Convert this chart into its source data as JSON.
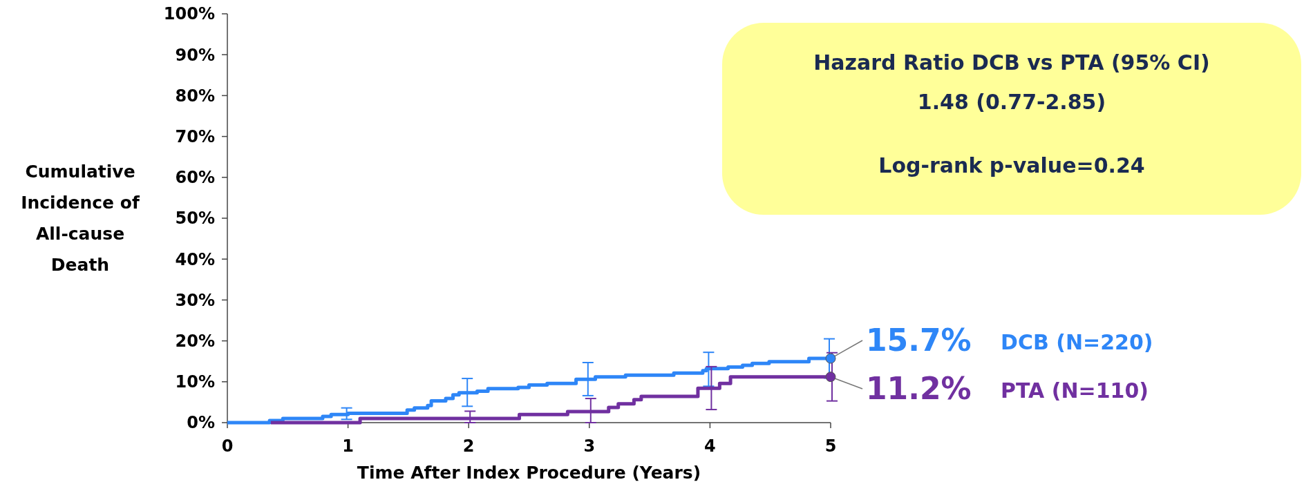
{
  "chart_data": {
    "type": "step",
    "xlabel": "Time After Index Procedure (Years)",
    "ylabel": "Cumulative Incidence of All-cause Death",
    "xlim": [
      0,
      5
    ],
    "ylim": [
      0,
      100
    ],
    "xticks": [
      0,
      1,
      2,
      3,
      4,
      5
    ],
    "yticks": [
      {
        "value": 0,
        "label": "0%"
      },
      {
        "value": 10,
        "label": "10%"
      },
      {
        "value": 20,
        "label": "20%"
      },
      {
        "value": 30,
        "label": "30%"
      },
      {
        "value": 40,
        "label": "40%"
      },
      {
        "value": 50,
        "label": "50%"
      },
      {
        "value": 60,
        "label": "60%"
      },
      {
        "value": 70,
        "label": "70%"
      },
      {
        "value": 80,
        "label": "80%"
      },
      {
        "value": 90,
        "label": "90%"
      },
      {
        "value": 100,
        "label": "100%"
      }
    ],
    "series": [
      {
        "name": "DCB (N=220)",
        "color": "#2e86f7",
        "x": [
          0,
          0.35,
          0.46,
          0.79,
          0.86,
          1,
          1.49,
          1.55,
          1.66,
          1.69,
          1.81,
          1.87,
          1.92,
          2,
          2.07,
          2.16,
          2.41,
          2.5,
          2.65,
          2.89,
          3,
          3.05,
          3.3,
          3.7,
          3.94,
          3.97,
          4,
          4.15,
          4.27,
          4.35,
          4.49,
          4.82,
          5
        ],
        "values": [
          0,
          0.5,
          1.0,
          1.5,
          2.0,
          2.3,
          3.1,
          3.6,
          4.2,
          5.3,
          5.9,
          6.8,
          7.3,
          7.3,
          7.7,
          8.3,
          8.6,
          9.2,
          9.6,
          10.6,
          10.6,
          11.2,
          11.6,
          12.1,
          12.7,
          13.2,
          13.2,
          13.6,
          14.0,
          14.5,
          14.9,
          15.7,
          15.7
        ],
        "errors": [
          null,
          null,
          null,
          null,
          null,
          [
            0.8,
            3.6
          ],
          null,
          null,
          null,
          null,
          null,
          null,
          null,
          [
            4.0,
            10.8
          ],
          null,
          null,
          null,
          null,
          null,
          null,
          [
            6.6,
            14.7
          ],
          null,
          null,
          null,
          null,
          null,
          [
            8.9,
            17.2
          ],
          null,
          null,
          null,
          null,
          null,
          [
            10.9,
            20.5
          ]
        ]
      },
      {
        "name": "PTA (N=110)",
        "color": "#7030a0",
        "x": [
          0.36,
          1.1,
          2,
          2.42,
          2.82,
          3,
          3.16,
          3.24,
          3.37,
          3.43,
          3.9,
          4,
          4.08,
          4.17,
          5
        ],
        "values": [
          0,
          1.0,
          1.0,
          2.0,
          2.7,
          2.7,
          3.7,
          4.6,
          5.6,
          6.4,
          8.4,
          8.4,
          9.6,
          11.2,
          11.2
        ],
        "errors": [
          null,
          null,
          [
            0,
            2.8
          ],
          null,
          null,
          [
            0,
            5.9
          ],
          null,
          null,
          null,
          null,
          null,
          [
            3.2,
            13.7
          ],
          null,
          null,
          [
            5.3,
            17.1
          ]
        ]
      }
    ],
    "annotations": [
      "Hazard Ratio DCB vs PTA (95% CI)",
      "1.48 (0.77-2.85)",
      "Log-rank p-value=0.24",
      {
        "text": "15.7%",
        "x": 5,
        "y": 15.7
      },
      {
        "text": "11.2%",
        "x": 5,
        "y": 11.2
      }
    ]
  }
}
